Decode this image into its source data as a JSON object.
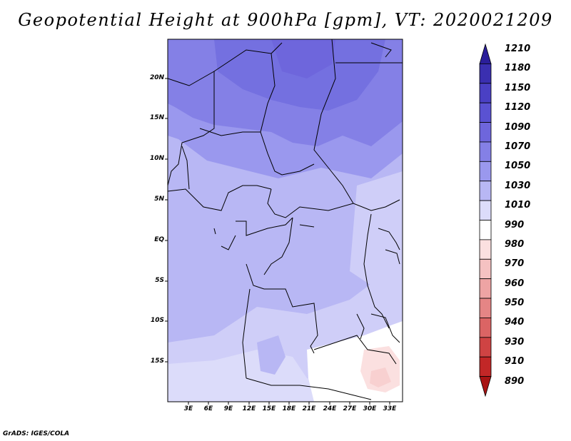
{
  "title": "Geopotential Height at 900hPa [gpm], VT: 2020021209",
  "footer": "GrADS: IGES/COLA",
  "map": {
    "lat_ticks": [
      "20N",
      "15N",
      "10N",
      "5N",
      "EQ",
      "5S",
      "10S",
      "15S"
    ],
    "lon_ticks": [
      "3E",
      "6E",
      "9E",
      "12E",
      "15E",
      "18E",
      "21E",
      "24E",
      "27E",
      "30E",
      "33E"
    ]
  },
  "colorbar": {
    "levels": [
      "1210",
      "1180",
      "1150",
      "1120",
      "1090",
      "1070",
      "1050",
      "1030",
      "1010",
      "990",
      "980",
      "970",
      "960",
      "950",
      "940",
      "930",
      "910",
      "890"
    ],
    "colors": [
      "#2b1e9a",
      "#3a2fb0",
      "#4a40c4",
      "#5a52d2",
      "#6e66dc",
      "#8480e6",
      "#9a98ee",
      "#b8b7f4",
      "#dcdcfa",
      "#ffffff",
      "#fbe0e0",
      "#f5c2c2",
      "#eea4a4",
      "#e58585",
      "#db6464",
      "#cf4343",
      "#c22727",
      "#a81414"
    ]
  }
}
